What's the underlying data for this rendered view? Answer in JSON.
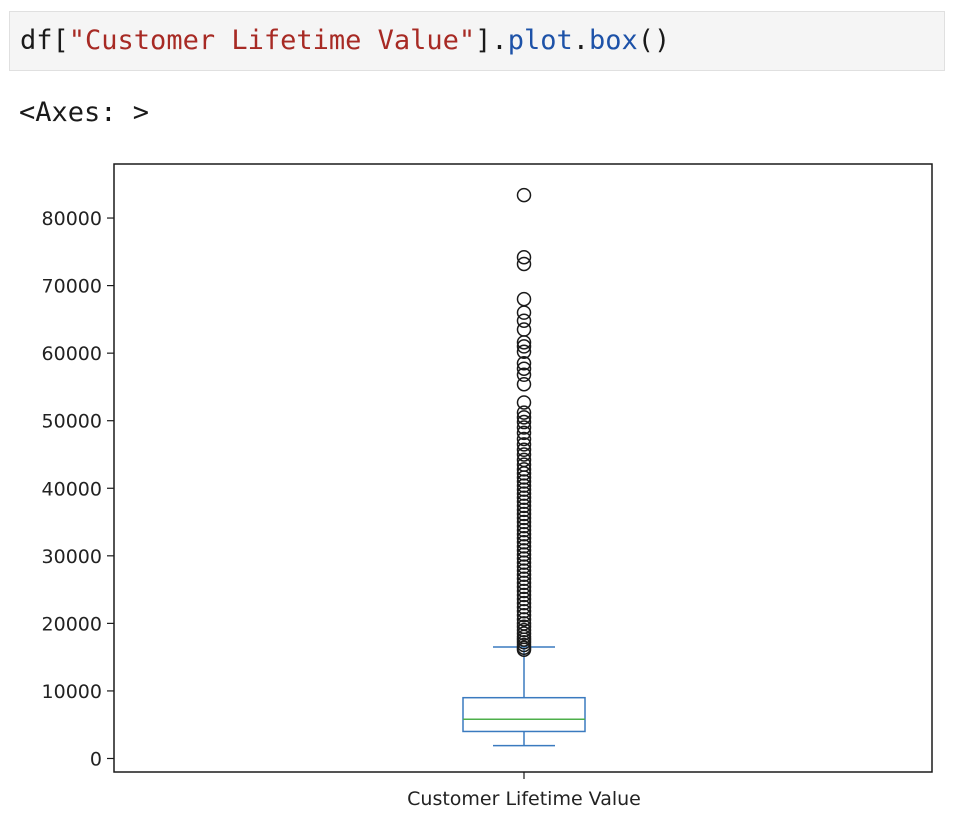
{
  "code_cell": {
    "tokens": [
      {
        "text": "df[",
        "kind": "plain"
      },
      {
        "text": "\"Customer Lifetime Value\"",
        "kind": "string"
      },
      {
        "text": "].",
        "kind": "plain"
      },
      {
        "text": "plot",
        "kind": "attr"
      },
      {
        "text": ".",
        "kind": "plain"
      },
      {
        "text": "box",
        "kind": "attr"
      },
      {
        "text": "()",
        "kind": "plain"
      }
    ]
  },
  "output": {
    "text": "<Axes: >"
  },
  "colors": {
    "box": "#3a7abf",
    "median": "#4daf4a",
    "flier": "#1a1a1a",
    "code_string": "#a72a24",
    "code_attr": "#1d52a8"
  },
  "chart_data": {
    "type": "box",
    "categories": [
      "Customer Lifetime Value"
    ],
    "xlabel": "",
    "ylabel": "",
    "ylim": [
      -2000,
      88000
    ],
    "yticks": [
      0,
      10000,
      20000,
      30000,
      40000,
      50000,
      60000,
      70000,
      80000
    ],
    "ytick_labels": [
      "0",
      "10000",
      "20000",
      "30000",
      "40000",
      "50000",
      "60000",
      "70000",
      "80000"
    ],
    "series": [
      {
        "whisker_low": 1900,
        "q1": 4000,
        "median": 5800,
        "q3": 9000,
        "whisker_high": 16500,
        "fliers": [
          16100,
          16400,
          16800,
          17200,
          17600,
          18000,
          18500,
          19000,
          19500,
          20000,
          20600,
          21200,
          21800,
          22400,
          23000,
          23600,
          24200,
          24800,
          25400,
          26000,
          26600,
          27200,
          27800,
          28400,
          29000,
          29600,
          30200,
          30800,
          31400,
          32000,
          32600,
          33200,
          33800,
          34400,
          35000,
          35600,
          36200,
          36800,
          37400,
          38000,
          38600,
          39200,
          39800,
          40400,
          41000,
          41600,
          42200,
          42800,
          43500,
          44200,
          45000,
          45700,
          46500,
          47300,
          48200,
          49000,
          49800,
          50500,
          51200,
          52700,
          55400,
          56800,
          57700,
          58500,
          60200,
          61000,
          61600,
          63500,
          64800,
          66000,
          68000,
          73200,
          74200,
          83400
        ]
      }
    ],
    "grid": false
  }
}
